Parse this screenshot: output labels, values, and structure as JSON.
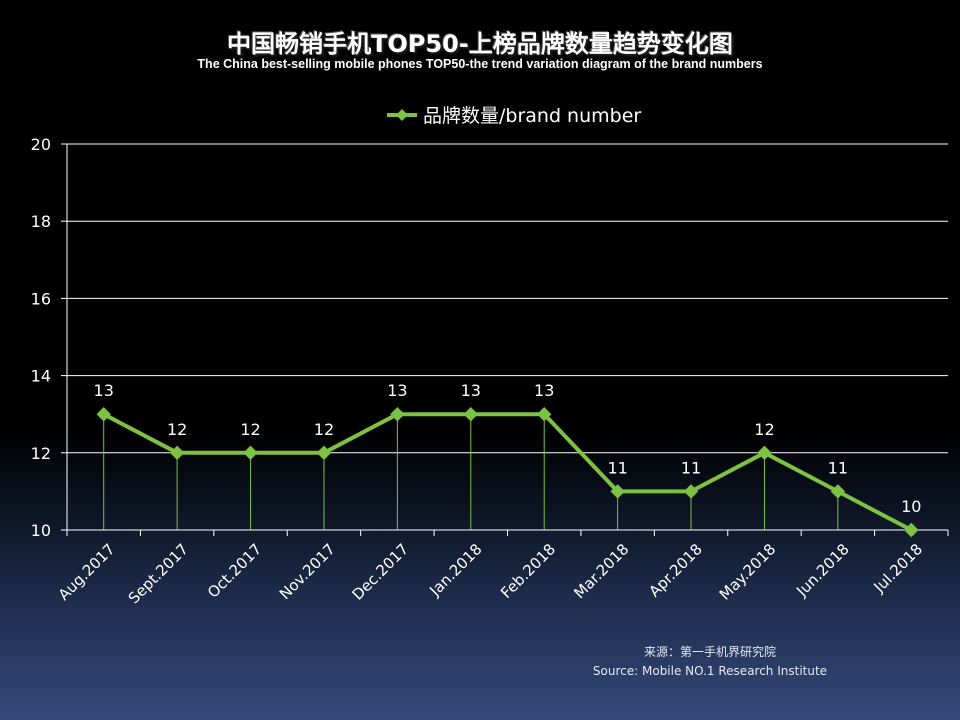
{
  "title": "中国畅销手机TOP50-上榜品牌数量趋势变化图",
  "subtitle": "The China best-selling mobile phones TOP50-the trend variation diagram of the brand numbers",
  "source_cn": "来源：第一手机界研究院",
  "source_en": "Source: Mobile NO.1 Research Institute",
  "colors": {
    "series": "#7dc242",
    "grid": "#ffffff",
    "text": "#ffffff"
  },
  "chart_data": {
    "type": "line",
    "categories": [
      "Aug.2017",
      "Sept.2017",
      "Oct.2017",
      "Nov.2017",
      "Dec.2017",
      "Jan.2018",
      "Feb.2018",
      "Mar.2018",
      "Apr.2018",
      "May.2018",
      "Jun.2018",
      "Jul.2018"
    ],
    "series": [
      {
        "name": "品牌数量/brand number",
        "values": [
          13,
          12,
          12,
          12,
          13,
          13,
          13,
          11,
          11,
          12,
          11,
          10
        ]
      }
    ],
    "ylim": [
      10,
      20
    ],
    "yticks": [
      10,
      12,
      14,
      16,
      18,
      20
    ],
    "grid": true,
    "legend": "top-center",
    "data_labels": true,
    "drop_lines": true,
    "xlabel": "",
    "ylabel": ""
  }
}
